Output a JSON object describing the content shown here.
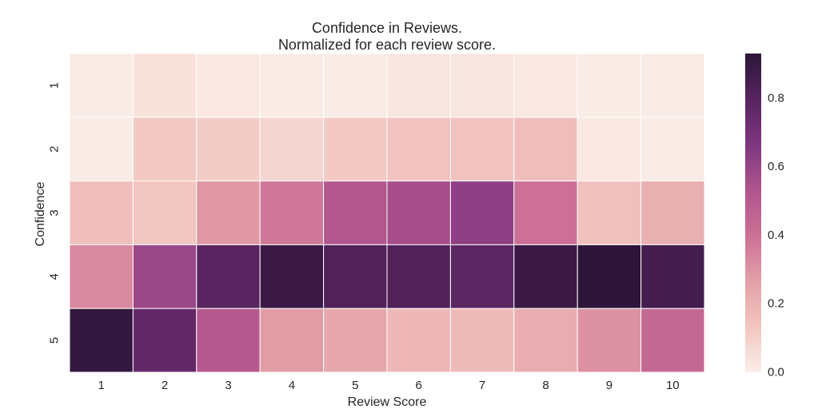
{
  "chart_data": {
    "type": "heatmap",
    "title": [
      "Confidence in Reviews.",
      "Normalized for each review score."
    ],
    "xlabel": "Review Score",
    "ylabel": "Confidence",
    "x_categories": [
      "1",
      "2",
      "3",
      "4",
      "5",
      "6",
      "7",
      "8",
      "9",
      "10"
    ],
    "y_categories": [
      "1",
      "2",
      "3",
      "4",
      "5"
    ],
    "values": [
      [
        0.01,
        0.04,
        0.02,
        0.01,
        0.01,
        0.03,
        0.03,
        0.02,
        0.01,
        0.01
      ],
      [
        0.01,
        0.12,
        0.11,
        0.08,
        0.12,
        0.14,
        0.14,
        0.16,
        0.02,
        0.01
      ],
      [
        0.16,
        0.13,
        0.29,
        0.38,
        0.52,
        0.56,
        0.62,
        0.4,
        0.15,
        0.21
      ],
      [
        0.33,
        0.59,
        0.79,
        0.89,
        0.82,
        0.82,
        0.78,
        0.89,
        0.93,
        0.86
      ],
      [
        0.91,
        0.76,
        0.51,
        0.28,
        0.24,
        0.18,
        0.17,
        0.22,
        0.31,
        0.44
      ]
    ],
    "color_range": [
      0.0,
      0.93
    ],
    "colorbar_ticks": [
      "0.0",
      "0.2",
      "0.4",
      "0.6",
      "0.8"
    ],
    "colorbar_tick_values": [
      0.0,
      0.2,
      0.4,
      0.6,
      0.8
    ],
    "colormap": [
      "#faeee8",
      "#f2c5c0",
      "#e3a1a7",
      "#cc7096",
      "#b0558d",
      "#7e3680",
      "#57245f",
      "#2d1639"
    ],
    "legend": "colorbar-right",
    "grid": false
  }
}
